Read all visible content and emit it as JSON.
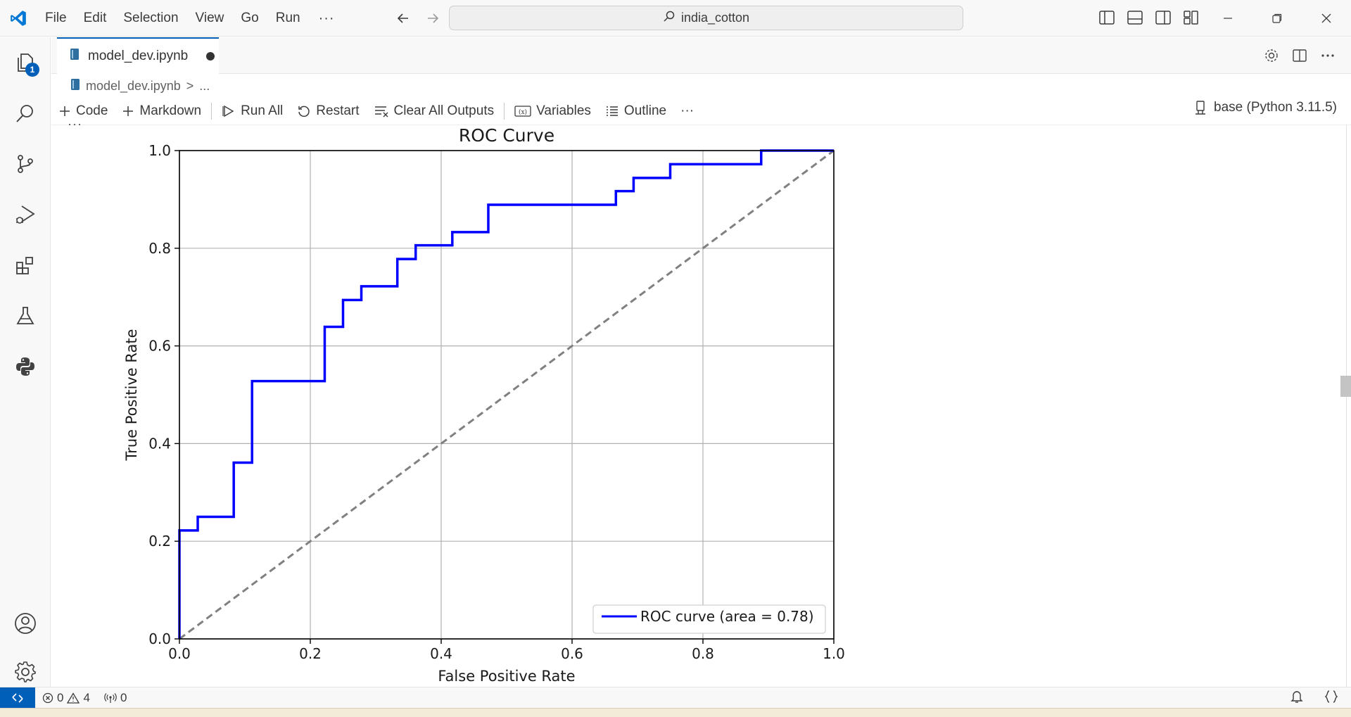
{
  "menu": {
    "file": "File",
    "edit": "Edit",
    "selection": "Selection",
    "view": "View",
    "go": "Go",
    "run": "Run",
    "more": "···"
  },
  "search": {
    "label": "india_cotton"
  },
  "activity": {
    "explorer_badge": "1"
  },
  "tab": {
    "label": "model_dev.ipynb"
  },
  "breadcrumb": {
    "file": "model_dev.ipynb",
    "sep": ">",
    "more": "..."
  },
  "toolbar": {
    "code": "Code",
    "markdown": "Markdown",
    "run_all": "Run All",
    "restart": "Restart",
    "clear_outputs": "Clear All Outputs",
    "variables": "Variables",
    "outline": "Outline",
    "more": "···",
    "kernel": "base (Python 3.11.5)"
  },
  "cell": {
    "more": "···"
  },
  "status": {
    "errors": "0",
    "warnings": "4",
    "ports": "0"
  },
  "colors": {
    "accent": "#005fb8",
    "roc_line": "#0000ff",
    "diagonal": "#808080"
  },
  "chart_data": {
    "type": "line",
    "title": "ROC Curve",
    "xlabel": "False Positive Rate",
    "ylabel": "True Positive Rate",
    "xlim": [
      0.0,
      1.0
    ],
    "ylim": [
      0.0,
      1.0
    ],
    "xticks": [
      "0.0",
      "0.2",
      "0.4",
      "0.6",
      "0.8",
      "1.0"
    ],
    "yticks": [
      "0.0",
      "0.2",
      "0.4",
      "0.6",
      "0.8",
      "1.0"
    ],
    "grid": true,
    "legend_position": "lower right",
    "series": [
      {
        "name": "ROC curve (area = 0.78)",
        "style": "step",
        "x": [
          0.0,
          0.0,
          0.028,
          0.028,
          0.083,
          0.083,
          0.111,
          0.111,
          0.222,
          0.222,
          0.25,
          0.25,
          0.278,
          0.278,
          0.333,
          0.333,
          0.361,
          0.361,
          0.417,
          0.417,
          0.472,
          0.472,
          0.667,
          0.667,
          0.694,
          0.694,
          0.75,
          0.75,
          0.889,
          0.889,
          1.0
        ],
        "y": [
          0.0,
          0.222,
          0.222,
          0.25,
          0.25,
          0.361,
          0.361,
          0.528,
          0.528,
          0.639,
          0.639,
          0.694,
          0.694,
          0.722,
          0.722,
          0.778,
          0.778,
          0.806,
          0.806,
          0.833,
          0.833,
          0.889,
          0.889,
          0.917,
          0.917,
          0.944,
          0.944,
          0.972,
          0.972,
          1.0,
          1.0
        ]
      },
      {
        "style": "dashed",
        "x": [
          0.0,
          1.0
        ],
        "y": [
          0.0,
          1.0
        ]
      }
    ]
  }
}
